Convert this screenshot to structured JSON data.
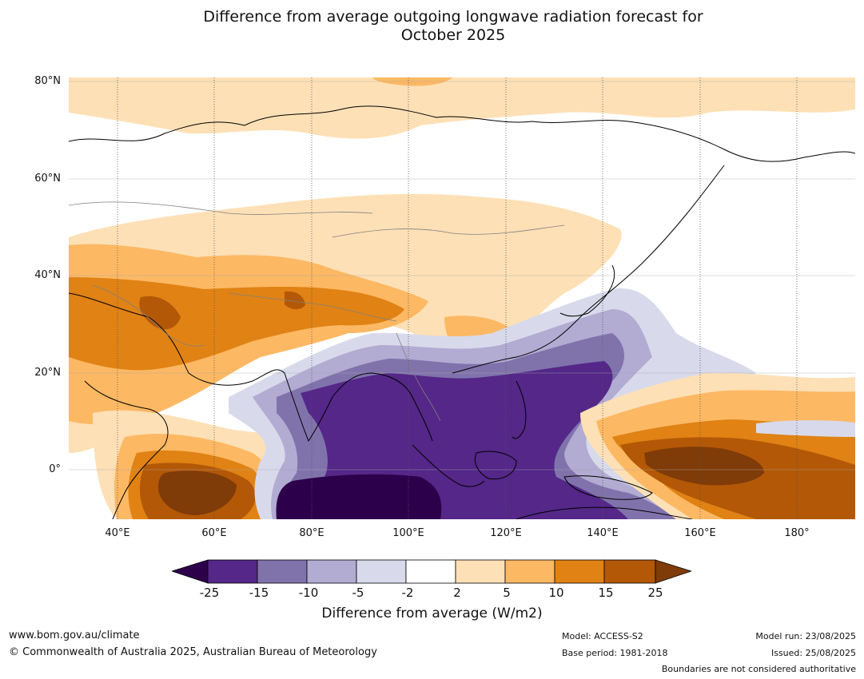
{
  "title": {
    "line1": "Difference from average outgoing longwave radiation forecast for",
    "line2": "October 2025"
  },
  "map": {
    "lat_labels": [
      "80°N",
      "60°N",
      "40°N",
      "20°N",
      "0°"
    ],
    "lon_labels": [
      "40°E",
      "60°E",
      "80°E",
      "100°E",
      "120°E",
      "140°E",
      "160°E",
      "180°"
    ],
    "lon_range": [
      30,
      192
    ],
    "lat_range": [
      -10,
      81
    ]
  },
  "colorbar": {
    "ticks": [
      "-25",
      "-15",
      "-10",
      "-5",
      "-2",
      "2",
      "5",
      "10",
      "15",
      "25"
    ],
    "label": "Difference from average (W/m2)",
    "colors": [
      "#2d004b",
      "#542788",
      "#8073ac",
      "#b2abd2",
      "#d8daeb",
      "#ffffff",
      "#fee0b6",
      "#fdb863",
      "#e08214",
      "#b35806",
      "#7f3b08"
    ]
  },
  "footer": {
    "website": "www.bom.gov.au/climate",
    "copyright": "© Commonwealth of Australia 2025, Australian Bureau of Meteorology",
    "model": "Model: ACCESS-S2",
    "base_period": "Base period: 1981-2018",
    "model_run": "Model run: 23/08/2025",
    "issued": "Issued: 25/08/2025",
    "disclaimer": "Boundaries are not considered authoritative"
  }
}
